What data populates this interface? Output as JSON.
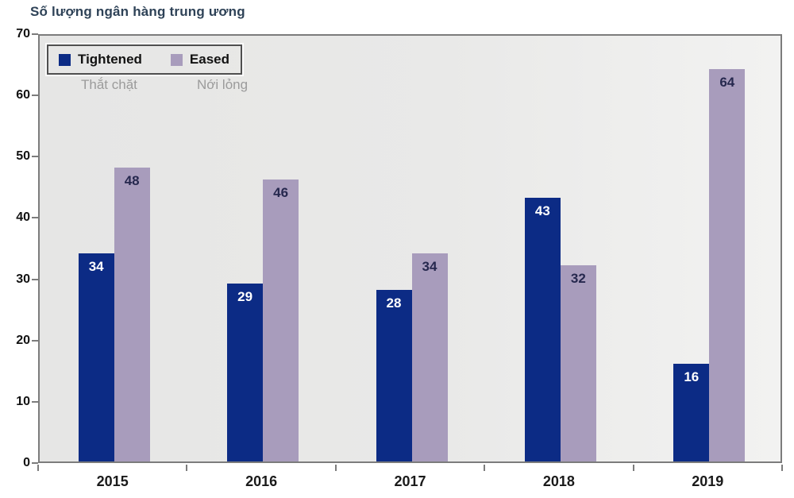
{
  "title": "Số lượng ngân hàng trung ương",
  "legend": {
    "items": [
      {
        "label": "Tightened",
        "sublabel": "Thắt chặt",
        "color": "#0c2b85"
      },
      {
        "label": "Eased",
        "sublabel": "Nới lỏng",
        "color": "#a89cbc"
      }
    ],
    "position": "top-left",
    "border_color": "#4f4f4f"
  },
  "chart_data": {
    "type": "bar",
    "title": "Số lượng ngân hàng trung ương",
    "categories": [
      "2015",
      "2016",
      "2017",
      "2018",
      "2019"
    ],
    "series": [
      {
        "name": "Tightened",
        "color": "#0c2b85",
        "label_color": "#ffffff",
        "values": [
          34,
          29,
          28,
          43,
          16
        ]
      },
      {
        "name": "Eased",
        "color": "#a89cbc",
        "label_color": "#26284e",
        "values": [
          48,
          46,
          34,
          32,
          64
        ]
      }
    ],
    "xlabel": "",
    "ylabel": "Số lượng ngân hàng trung ương",
    "ylim": [
      0,
      70
    ],
    "ytick_step": 10,
    "yticks": [
      0,
      10,
      20,
      30,
      40,
      50,
      60,
      70
    ],
    "grid": false,
    "bar_value_labels": true,
    "legend_position": "top-left",
    "plot_background": "#e9e9e8",
    "axis_color": "#7c7c7c"
  }
}
